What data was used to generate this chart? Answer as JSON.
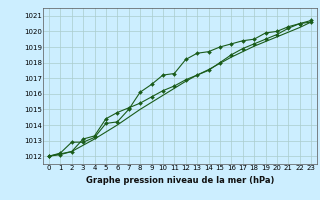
{
  "title": "",
  "xlabel": "Graphe pression niveau de la mer (hPa)",
  "background_color": "#cceeff",
  "grid_color": "#aacccc",
  "line_color": "#1a5c1a",
  "marker_color": "#1a5c1a",
  "ylim": [
    1011.5,
    1021.5
  ],
  "xlim": [
    -0.5,
    23.5
  ],
  "yticks": [
    1012,
    1013,
    1014,
    1015,
    1016,
    1017,
    1018,
    1019,
    1020,
    1021
  ],
  "xticks": [
    0,
    1,
    2,
    3,
    4,
    5,
    6,
    7,
    8,
    9,
    10,
    11,
    12,
    13,
    14,
    15,
    16,
    17,
    18,
    19,
    20,
    21,
    22,
    23
  ],
  "line1_x": [
    0,
    1,
    2,
    3,
    4,
    5,
    6,
    7,
    8,
    9,
    10,
    11,
    12,
    13,
    14,
    15,
    16,
    17,
    18,
    19,
    20,
    21,
    22,
    23
  ],
  "line1_y": [
    1012.0,
    1012.2,
    1012.9,
    1012.9,
    1013.2,
    1014.1,
    1014.2,
    1015.0,
    1016.1,
    1016.6,
    1017.2,
    1017.3,
    1018.2,
    1018.6,
    1018.7,
    1019.0,
    1019.2,
    1019.4,
    1019.5,
    1019.9,
    1020.0,
    1020.3,
    1020.5,
    1020.6
  ],
  "line2_x": [
    0,
    1,
    2,
    3,
    4,
    5,
    6,
    7,
    8,
    9,
    10,
    11,
    12,
    13,
    14,
    15,
    16,
    17,
    18,
    19,
    20,
    21,
    22,
    23
  ],
  "line2_y": [
    1012.0,
    1012.1,
    1012.3,
    1013.1,
    1013.3,
    1014.4,
    1014.8,
    1015.1,
    1015.4,
    1015.8,
    1016.2,
    1016.5,
    1016.9,
    1017.2,
    1017.5,
    1018.0,
    1018.5,
    1018.9,
    1019.2,
    1019.5,
    1019.8,
    1020.2,
    1020.5,
    1020.7
  ],
  "line3_x": [
    0,
    1,
    2,
    3,
    4,
    5,
    6,
    7,
    8,
    9,
    10,
    11,
    12,
    13,
    14,
    15,
    16,
    17,
    18,
    19,
    20,
    21,
    22,
    23
  ],
  "line3_y": [
    1012.0,
    1012.15,
    1012.3,
    1012.7,
    1013.1,
    1013.55,
    1014.0,
    1014.5,
    1015.0,
    1015.45,
    1015.9,
    1016.35,
    1016.8,
    1017.2,
    1017.55,
    1017.95,
    1018.35,
    1018.7,
    1019.05,
    1019.35,
    1019.65,
    1019.95,
    1020.25,
    1020.6
  ],
  "xlabel_fontsize": 6,
  "tick_fontsize": 5,
  "linewidth": 0.8,
  "markersize": 2.0
}
